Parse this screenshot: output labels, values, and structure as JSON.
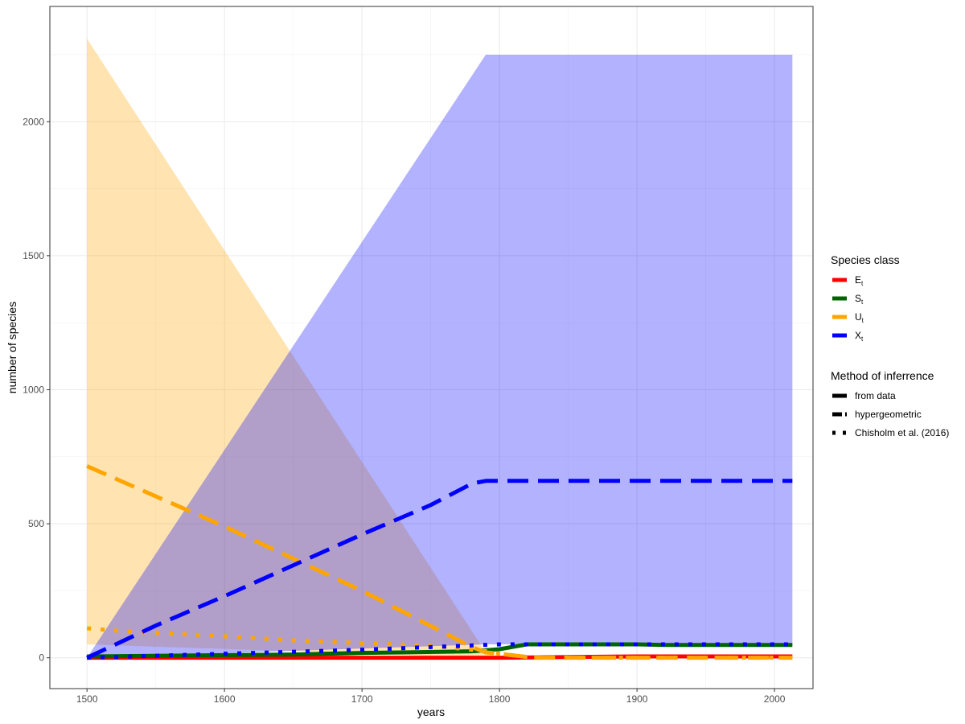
{
  "chart_data": {
    "type": "line",
    "title": "",
    "xlabel": "years",
    "ylabel": "number of species",
    "xlim": [
      1473,
      2028
    ],
    "ylim": [
      -115,
      2430
    ],
    "xticks": [
      1500,
      1600,
      1700,
      1800,
      1900,
      2000
    ],
    "yticks": [
      0,
      500,
      1000,
      1500,
      2000
    ],
    "xtick_labels": [
      "1500",
      "1600",
      "1700",
      "1800",
      "1900",
      "2000"
    ],
    "ytick_labels": [
      "0",
      "500",
      "1000",
      "1500",
      "2000"
    ],
    "grid": true,
    "legend_position": "right",
    "legends": [
      {
        "title": "Species class",
        "entries": [
          {
            "label": "E",
            "subscript": "t",
            "color": "#ff0000",
            "linetype": "solid"
          },
          {
            "label": "S",
            "subscript": "t",
            "color": "#006400",
            "linetype": "solid"
          },
          {
            "label": "U",
            "subscript": "t",
            "color": "#ffa500",
            "linetype": "solid"
          },
          {
            "label": "X",
            "subscript": "t",
            "color": "#0000ff",
            "linetype": "solid"
          }
        ]
      },
      {
        "title": "Method of inferrence",
        "entries": [
          {
            "label": "from data",
            "color": "#000000",
            "linetype": "solid"
          },
          {
            "label": "hypergeometric",
            "color": "#000000",
            "linetype": "dashed"
          },
          {
            "label": "Chisholm et al. (2016)",
            "color": "#000000",
            "linetype": "dotted"
          }
        ]
      }
    ],
    "ribbons": [
      {
        "class": "U",
        "color": "#ffa500",
        "opacity": 0.3,
        "x": [
          1500,
          1790,
          1800,
          1825,
          2013
        ],
        "lower": [
          50,
          0,
          0,
          0,
          0
        ],
        "upper": [
          2310,
          20,
          0,
          0,
          0
        ]
      },
      {
        "class": "X",
        "color": "#0000ff",
        "opacity": 0.3,
        "x": [
          1500,
          1790,
          2013
        ],
        "lower": [
          0,
          50,
          50
        ],
        "upper": [
          0,
          2250,
          2250
        ]
      }
    ],
    "series": [
      {
        "class": "E",
        "method": "from data",
        "color": "#ff0000",
        "linetype": "solid",
        "x": [
          1500,
          1600,
          1700,
          1800,
          1900,
          2013
        ],
        "y": [
          0,
          0,
          0,
          0,
          5,
          5
        ]
      },
      {
        "class": "S",
        "method": "from data",
        "color": "#006400",
        "linetype": "solid",
        "x": [
          1500,
          1600,
          1650,
          1700,
          1780,
          1790,
          1800,
          1820,
          1850,
          1900,
          1920,
          2013
        ],
        "y": [
          5,
          10,
          12,
          18,
          24,
          28,
          32,
          50,
          50,
          50,
          48,
          48
        ]
      },
      {
        "class": "U",
        "method": "hypergeometric",
        "color": "#ffa500",
        "linetype": "dashed",
        "x": [
          1500,
          1600,
          1700,
          1780,
          1790,
          1800,
          1825,
          2013
        ],
        "y": [
          715,
          490,
          250,
          40,
          20,
          15,
          0,
          0
        ]
      },
      {
        "class": "U",
        "method": "Chisholm et al. (2016)",
        "color": "#ffa500",
        "linetype": "dotted",
        "x": [
          1500,
          1525,
          1600,
          1650,
          1700,
          1750,
          1790,
          1800,
          1825,
          2013
        ],
        "y": [
          110,
          100,
          80,
          65,
          55,
          45,
          25,
          15,
          0,
          0
        ]
      },
      {
        "class": "X",
        "method": "hypergeometric",
        "color": "#0000ff",
        "linetype": "dashed",
        "x": [
          1500,
          1550,
          1600,
          1650,
          1700,
          1750,
          1780,
          1790,
          1800,
          2013
        ],
        "y": [
          0,
          120,
          230,
          345,
          460,
          570,
          650,
          660,
          660,
          660
        ]
      },
      {
        "class": "X",
        "method": "Chisholm et al. (2016)",
        "color": "#0000ff",
        "linetype": "dotted",
        "x": [
          1500,
          1600,
          1700,
          1750,
          1800,
          1900,
          2013
        ],
        "y": [
          0,
          15,
          30,
          40,
          50,
          50,
          50
        ]
      }
    ]
  }
}
